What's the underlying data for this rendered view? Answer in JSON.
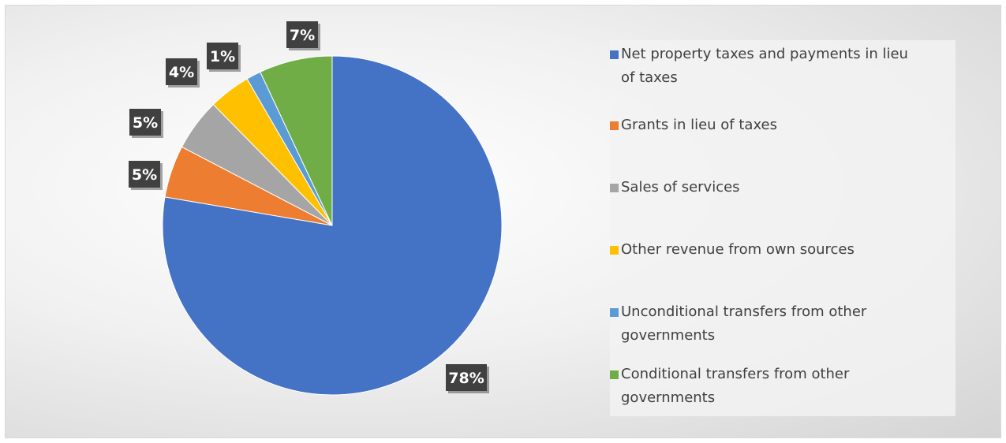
{
  "chart_data": {
    "type": "pie",
    "title": "",
    "slices": [
      {
        "label": "Net property taxes and payments in lieu of taxes",
        "value": 78,
        "data_label": "78%",
        "color": "#4472C4"
      },
      {
        "label": "Grants in lieu of taxes",
        "value": 5,
        "data_label": "5%",
        "color": "#ED7D31"
      },
      {
        "label": "Sales of services",
        "value": 5,
        "data_label": "5%",
        "color": "#A5A5A5"
      },
      {
        "label": "Other revenue from own sources",
        "value": 4,
        "data_label": "4%",
        "color": "#FFC000"
      },
      {
        "label": "Unconditional transfers from other governments",
        "value": 1.4,
        "data_label": "1%",
        "color": "#5B9BD5"
      },
      {
        "label": "Conditional transfers from other governments",
        "value": 7,
        "data_label": "7%",
        "color": "#70AD47"
      }
    ],
    "start_angle": "12 o'clock",
    "direction": "clockwise",
    "legend_position": "right",
    "data_label_style": "dark box with white bold text"
  }
}
